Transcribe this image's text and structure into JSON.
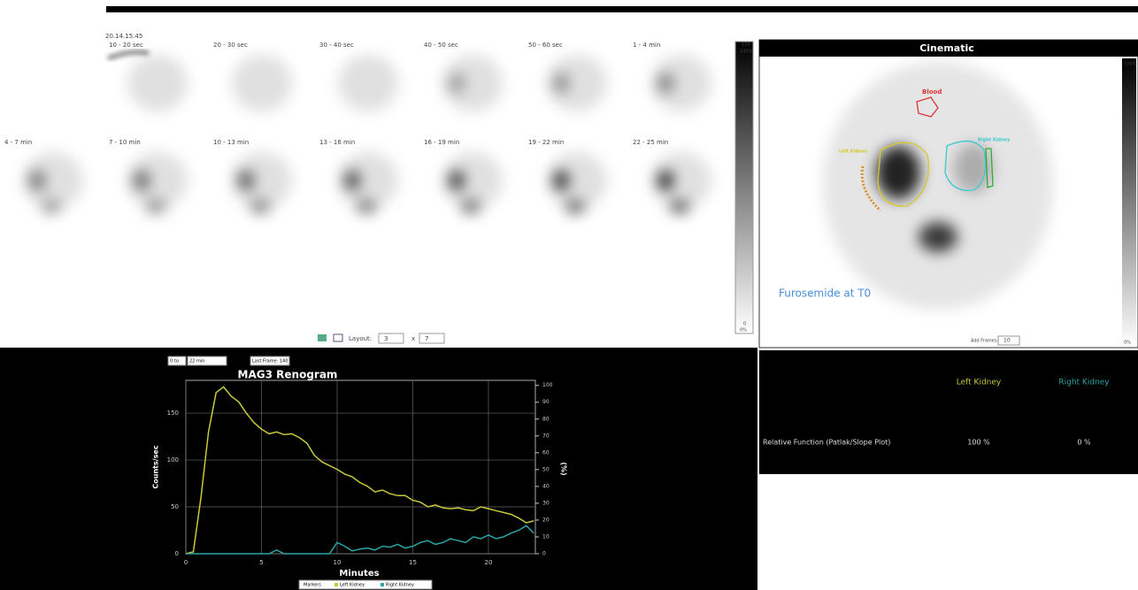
{
  "header": {
    "timestamp": "20.14.15.45"
  },
  "frames": {
    "rows": [
      [
        "10 - 20 sec",
        "20 - 30 sec",
        "30 - 40 sec",
        "40 - 50 sec",
        "50 - 60 sec",
        "1 - 4 min"
      ],
      [
        "4 - 7 min",
        "7 - 10 min",
        "10 - 13 min",
        "13 - 16 min",
        "16 - 19 min",
        "19 - 22 min",
        "22 - 25 min"
      ]
    ],
    "scale": {
      "max": "124",
      "max_pct": "100%",
      "min": "0",
      "min_pct": "0%"
    },
    "layout": {
      "label": "Layout:",
      "rows": "3",
      "separator": "x",
      "cols": "7"
    }
  },
  "cinematic": {
    "title": "Cinematic",
    "scale_max": "100%",
    "scale_min": "0%",
    "rois": [
      {
        "label": "Blood",
        "color": "#d9343a"
      },
      {
        "label": "Left Kidney",
        "color": "#d8c82a"
      },
      {
        "label": "Right Kidney",
        "color": "#3cc8d0"
      }
    ],
    "annotation": "Furosemide at T0",
    "add_frames_label": "Add Frames:",
    "add_frames_value": "10"
  },
  "results": {
    "columns": [
      "Left Kidney",
      "Right Kidney"
    ],
    "rows": [
      [
        "Relative Function (Patlak/Slope Plot)",
        "100 %",
        "0 %"
      ]
    ]
  },
  "chart_data": {
    "type": "line",
    "title": "MAG3 Renogram",
    "controls": {
      "from": "0 to",
      "to": "22 min",
      "last_frame": "Last Frame: 140"
    },
    "x_label": "Minutes",
    "y_label": "Counts/sec",
    "y2_label": "(%)",
    "markers_label": "Markers",
    "x": [
      0,
      0.5,
      1,
      1.5,
      2,
      2.5,
      3,
      3.5,
      4,
      4.5,
      5,
      5.5,
      6,
      6.5,
      7,
      7.5,
      8,
      8.5,
      9,
      9.5,
      10,
      10.5,
      11,
      11.5,
      12,
      12.5,
      13,
      13.5,
      14,
      14.5,
      15,
      15.5,
      16,
      16.5,
      17,
      17.5,
      18,
      18.5,
      19,
      19.5,
      20,
      20.5,
      21,
      21.5,
      22,
      22.5,
      23
    ],
    "series": [
      {
        "name": "Left Kidney",
        "color": "#c8c83a",
        "values": [
          0,
          2,
          60,
          130,
          172,
          178,
          168,
          162,
          150,
          140,
          133,
          128,
          130,
          127,
          128,
          124,
          118,
          105,
          98,
          94,
          90,
          85,
          82,
          76,
          72,
          66,
          68,
          64,
          62,
          62,
          57,
          55,
          50,
          52,
          49,
          48,
          49,
          47,
          46,
          50,
          48,
          46,
          44,
          42,
          38,
          33,
          35
        ]
      },
      {
        "name": "Right Kidney",
        "color": "#2aa5a5",
        "values": [
          0,
          0,
          0,
          0,
          0,
          0,
          0,
          0,
          0,
          0,
          0,
          0,
          4,
          0,
          0,
          0,
          0,
          0,
          0,
          0,
          12,
          8,
          3,
          5,
          6,
          4,
          8,
          7,
          10,
          6,
          8,
          12,
          14,
          10,
          12,
          16,
          14,
          12,
          18,
          16,
          20,
          16,
          18,
          22,
          25,
          30,
          22
        ]
      }
    ],
    "xlim": [
      0,
      23.1
    ],
    "xticks": [
      0,
      5,
      10,
      15,
      20
    ],
    "ylim": [
      0,
      185
    ],
    "yticks": [
      0,
      50,
      100,
      150
    ],
    "y2lim": [
      0,
      103
    ],
    "y2ticks": [
      0,
      10,
      20,
      30,
      40,
      50,
      60,
      70,
      80,
      90,
      100
    ],
    "grid": true
  }
}
